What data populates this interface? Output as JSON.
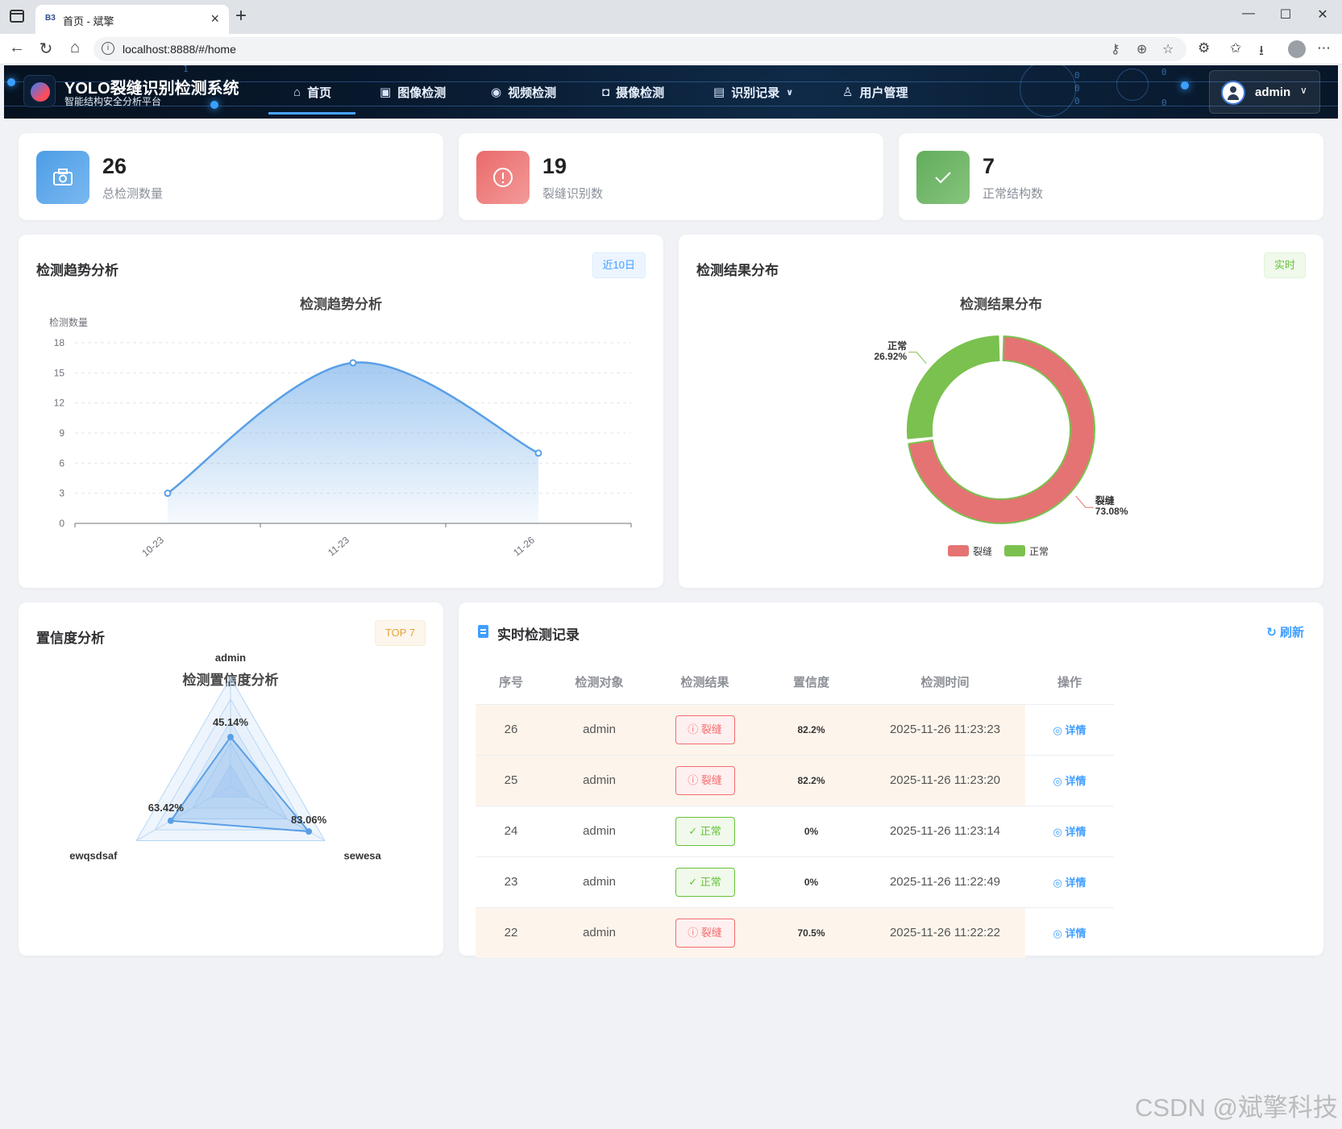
{
  "browser": {
    "tab_favicon": "B3",
    "tab_title": "首页 - 斌擎",
    "url": "localhost:8888/#/home"
  },
  "header": {
    "title": "YOLO裂缝识别检测系统",
    "subtitle": "智能结构安全分析平台",
    "nav": [
      {
        "label": "首页",
        "icon": "home-icon"
      },
      {
        "label": "图像检测",
        "icon": "image-icon"
      },
      {
        "label": "视频检测",
        "icon": "play-icon"
      },
      {
        "label": "摄像检测",
        "icon": "camera-icon"
      },
      {
        "label": "识别记录",
        "icon": "document-icon"
      },
      {
        "label": "用户管理",
        "icon": "user-icon"
      }
    ],
    "active_nav": "首页",
    "user": "admin"
  },
  "stats": [
    {
      "value": "26",
      "label": "总检测数量",
      "color": "#5aa7ea",
      "icon": "camera-icon"
    },
    {
      "value": "19",
      "label": "裂缝识别数",
      "color": "#ef7f7f",
      "icon": "alert-icon"
    },
    {
      "value": "7",
      "label": "正常结构数",
      "color": "#70b86a",
      "icon": "check-icon"
    }
  ],
  "trend_card": {
    "title": "检测趋势分析",
    "tag": "近10日"
  },
  "dist_card": {
    "title": "检测结果分布",
    "tag": "实时"
  },
  "conf_card": {
    "title": "置信度分析",
    "tag": "TOP 7"
  },
  "records_card": {
    "title": "实时检测记录",
    "refresh": "刷新",
    "columns": [
      "序号",
      "检测对象",
      "检测结果",
      "置信度",
      "检测时间",
      "操作"
    ],
    "rows": [
      {
        "id": "26",
        "target": "admin",
        "result": "裂缝",
        "type": "crack",
        "conf": "82.2%",
        "time": "2025-11-26 11:23:23",
        "action": "详情"
      },
      {
        "id": "25",
        "target": "admin",
        "result": "裂缝",
        "type": "crack",
        "conf": "82.2%",
        "time": "2025-11-26 11:23:20",
        "action": "详情"
      },
      {
        "id": "24",
        "target": "admin",
        "result": "正常",
        "type": "normal",
        "conf": "0%",
        "time": "2025-11-26 11:23:14",
        "action": "详情"
      },
      {
        "id": "23",
        "target": "admin",
        "result": "正常",
        "type": "normal",
        "conf": "0%",
        "time": "2025-11-26 11:22:49",
        "action": "详情"
      },
      {
        "id": "22",
        "target": "admin",
        "result": "裂缝",
        "type": "crack",
        "conf": "70.5%",
        "time": "2025-11-26 11:22:22",
        "action": "详情"
      }
    ]
  },
  "chart_data": [
    {
      "type": "area",
      "title": "检测趋势分析",
      "ylabel": "检测数量",
      "categories": [
        "10-23",
        "11-23",
        "11-26"
      ],
      "values": [
        3,
        16,
        7
      ],
      "ylim": [
        0,
        18
      ],
      "yticks": [
        0,
        3,
        6,
        9,
        12,
        15,
        18
      ],
      "color": "#5a9fe6",
      "grid": true
    },
    {
      "type": "pie",
      "title": "检测结果分布",
      "slices": [
        {
          "name": "裂缝",
          "value": 73.08,
          "label": "73.08%",
          "color": "#e57373"
        },
        {
          "name": "正常",
          "value": 26.92,
          "label": "26.92%",
          "color": "#7bc14f"
        }
      ],
      "legend": "bottom"
    },
    {
      "type": "radar",
      "title": "检测置信度分析",
      "indicators": [
        "admin",
        "sewesa",
        "ewqsdsaf"
      ],
      "values": [
        45.14,
        83.06,
        63.42
      ],
      "labels": [
        "45.14%",
        "83.06%",
        "63.42%"
      ],
      "max": 100,
      "color": "#5a9fe6"
    }
  ],
  "watermark": "CSDN @斌擎科技"
}
